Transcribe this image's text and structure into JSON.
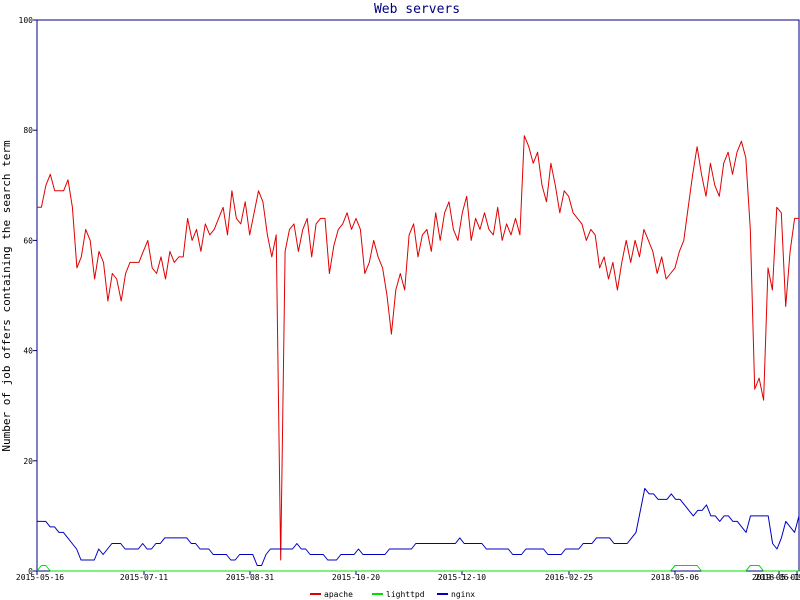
{
  "chart_data": {
    "type": "line",
    "title": "Web servers",
    "ylabel": "Number of job offers containing the search term",
    "xlabel": "",
    "ylim": [
      0,
      100
    ],
    "yticks": [
      0,
      20,
      40,
      60,
      80,
      100
    ],
    "xticks": [
      "2015-05-16",
      "2015-07-11",
      "2015-08-31",
      "2015-10-20",
      "2015-12-10",
      "2016-02-25",
      "2018-05-06",
      "2018-06-19",
      "2019-05-01"
    ],
    "grid": false,
    "legend_placement": "bottom-center",
    "series": [
      {
        "name": "apache",
        "color": "#e00000",
        "values": [
          66,
          66,
          70,
          72,
          69,
          69,
          69,
          71,
          66,
          55,
          57,
          62,
          60,
          53,
          58,
          56,
          49,
          54,
          53,
          49,
          54,
          56,
          56,
          56,
          58,
          60,
          55,
          54,
          57,
          53,
          58,
          56,
          57,
          57,
          64,
          60,
          62,
          58,
          63,
          61,
          62,
          64,
          66,
          61,
          69,
          64,
          63,
          67,
          61,
          65,
          69,
          67,
          61,
          57,
          61,
          2,
          58,
          62,
          63,
          58,
          62,
          64,
          57,
          63,
          64,
          64,
          54,
          59,
          62,
          63,
          65,
          62,
          64,
          62,
          54,
          56,
          60,
          57,
          55,
          50,
          43,
          51,
          54,
          51,
          61,
          63,
          57,
          61,
          62,
          58,
          65,
          60,
          65,
          67,
          62,
          60,
          65,
          68,
          60,
          64,
          62,
          65,
          62,
          61,
          66,
          60,
          63,
          61,
          64,
          61,
          79,
          77,
          74,
          76,
          70,
          67,
          74,
          70,
          65,
          69,
          68,
          65,
          64,
          63,
          60,
          62,
          61,
          55,
          57,
          53,
          56,
          51,
          56,
          60,
          56,
          60,
          57,
          62,
          60,
          58,
          54,
          57,
          53,
          54,
          55,
          58,
          60,
          66,
          72,
          77,
          72,
          68,
          74,
          70,
          68,
          74,
          76,
          72,
          76,
          78,
          75,
          62,
          33,
          35,
          31,
          55,
          51,
          66,
          65,
          48,
          58,
          64,
          64
        ]
      },
      {
        "name": "lighttpd",
        "color": "#00e000",
        "values": [
          0,
          1,
          1,
          0,
          0,
          0,
          0,
          0,
          0,
          0,
          0,
          0,
          0,
          0,
          0,
          0,
          0,
          0,
          0,
          0,
          0,
          0,
          0,
          0,
          0,
          0,
          0,
          0,
          0,
          0,
          0,
          0,
          0,
          0,
          0,
          0,
          0,
          0,
          0,
          0,
          0,
          0,
          0,
          0,
          0,
          0,
          0,
          0,
          0,
          0,
          0,
          0,
          0,
          0,
          0,
          0,
          0,
          0,
          0,
          0,
          0,
          0,
          0,
          0,
          0,
          0,
          0,
          0,
          0,
          0,
          0,
          0,
          0,
          0,
          0,
          0,
          0,
          0,
          0,
          0,
          0,
          0,
          0,
          0,
          0,
          0,
          0,
          0,
          0,
          0,
          0,
          0,
          0,
          0,
          0,
          0,
          0,
          0,
          0,
          0,
          0,
          0,
          0,
          0,
          0,
          0,
          0,
          0,
          0,
          0,
          0,
          0,
          0,
          0,
          0,
          0,
          0,
          0,
          0,
          0,
          0,
          0,
          0,
          0,
          0,
          0,
          0,
          0,
          0,
          0,
          0,
          0,
          0,
          0,
          0,
          0,
          0,
          0,
          0,
          0,
          0,
          0,
          0,
          0,
          1,
          1,
          1,
          1,
          1,
          1,
          0,
          0,
          0,
          0,
          0,
          0,
          0,
          0,
          0,
          0,
          0,
          1,
          1,
          1,
          0,
          0,
          0,
          0,
          0,
          0,
          0,
          0,
          0
        ]
      },
      {
        "name": "nginx",
        "color": "#0000c0",
        "values": [
          9,
          9,
          9,
          8,
          8,
          7,
          7,
          6,
          5,
          4,
          2,
          2,
          2,
          2,
          4,
          3,
          4,
          5,
          5,
          5,
          4,
          4,
          4,
          4,
          5,
          4,
          4,
          5,
          5,
          6,
          6,
          6,
          6,
          6,
          6,
          5,
          5,
          4,
          4,
          4,
          3,
          3,
          3,
          3,
          2,
          2,
          3,
          3,
          3,
          3,
          1,
          1,
          3,
          4,
          4,
          4,
          4,
          4,
          4,
          5,
          4,
          4,
          3,
          3,
          3,
          3,
          2,
          2,
          2,
          3,
          3,
          3,
          3,
          4,
          3,
          3,
          3,
          3,
          3,
          3,
          4,
          4,
          4,
          4,
          4,
          4,
          5,
          5,
          5,
          5,
          5,
          5,
          5,
          5,
          5,
          5,
          6,
          5,
          5,
          5,
          5,
          5,
          4,
          4,
          4,
          4,
          4,
          4,
          3,
          3,
          3,
          4,
          4,
          4,
          4,
          4,
          3,
          3,
          3,
          3,
          4,
          4,
          4,
          4,
          5,
          5,
          5,
          6,
          6,
          6,
          6,
          5,
          5,
          5,
          5,
          6,
          7,
          11,
          15,
          14,
          14,
          13,
          13,
          13,
          14,
          13,
          13,
          12,
          11,
          10,
          11,
          11,
          12,
          10,
          10,
          9,
          10,
          10,
          9,
          9,
          8,
          7,
          10,
          10,
          10,
          10,
          10,
          5,
          4,
          6,
          9,
          8,
          7,
          10
        ]
      }
    ]
  }
}
